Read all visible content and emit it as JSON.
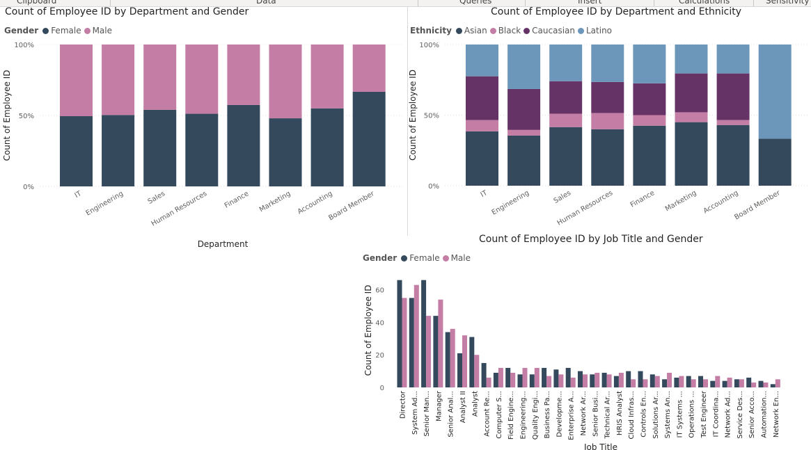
{
  "ribbon": {
    "items": [
      "Clipboard",
      "Data",
      "Queries",
      "Insert",
      "Calculations",
      "Sensitivity"
    ]
  },
  "colors": {
    "female": "#344a5c",
    "male": "#c47da5",
    "asian": "#344a5c",
    "black": "#c47da5",
    "caucasian": "#663366",
    "latino": "#6d97ba"
  },
  "chart1": {
    "title": "Count of Employee ID by Department and Gender",
    "legend_title": "Gender",
    "legend": [
      "Female",
      "Male"
    ]
  },
  "chart2": {
    "title": "Count of Employee ID by Department and Ethnicity",
    "legend_title": "Ethnicity",
    "legend": [
      "Asian",
      "Black",
      "Caucasian",
      "Latino"
    ]
  },
  "chart3": {
    "title": "Count of Employee ID by Job Title and Gender",
    "legend_title": "Gender",
    "legend": [
      "Female",
      "Male"
    ]
  },
  "chart_data": [
    {
      "type": "bar",
      "stacked": "100%",
      "title": "Count of Employee ID by Department and Gender",
      "xlabel": "Department",
      "ylabel": "Count of Employee ID",
      "yticks": [
        "0%",
        "50%",
        "100%"
      ],
      "ylim": [
        0,
        100
      ],
      "legend_position": "top-left",
      "categories": [
        "IT",
        "Engineering",
        "Sales",
        "Human Resources",
        "Finance",
        "Marketing",
        "Accounting",
        "Board Member"
      ],
      "series": [
        {
          "name": "Female",
          "values": [
            49.5,
            50.3,
            54,
            51.2,
            57.4,
            48,
            55,
            66.7
          ]
        },
        {
          "name": "Male",
          "values": [
            50.5,
            49.7,
            46,
            48.8,
            42.6,
            52,
            45,
            33.3
          ]
        }
      ]
    },
    {
      "type": "bar",
      "stacked": "100%",
      "title": "Count of Employee ID by Department and Ethnicity",
      "xlabel": "",
      "ylabel": "Count of Employee ID",
      "yticks": [
        "0%",
        "50%",
        "100%"
      ],
      "ylim": [
        0,
        100
      ],
      "legend_position": "top-left",
      "categories": [
        "IT",
        "Engineering",
        "Sales",
        "Human Resources",
        "Finance",
        "Marketing",
        "Accounting",
        "Board Member"
      ],
      "series": [
        {
          "name": "Asian",
          "values": [
            38.5,
            35.5,
            41.5,
            40,
            42.5,
            45,
            43,
            33.3
          ]
        },
        {
          "name": "Black",
          "values": [
            8,
            4,
            9.5,
            11.5,
            7.5,
            7,
            3.5,
            0
          ]
        },
        {
          "name": "Caucasian",
          "values": [
            31,
            29,
            23,
            22,
            22.5,
            27.5,
            33,
            0
          ]
        },
        {
          "name": "Latino",
          "values": [
            22.5,
            31.5,
            26,
            26.5,
            27.5,
            20.5,
            20.5,
            66.7
          ]
        }
      ]
    },
    {
      "type": "bar",
      "stacked": "none",
      "title": "Count of Employee ID by Job Title and Gender",
      "xlabel": "Job Title",
      "ylabel": "Count of Employee ID",
      "yticks": [
        "0",
        "20",
        "40",
        "60"
      ],
      "ylim": [
        0,
        68
      ],
      "legend_position": "top-left",
      "categories": [
        "Director",
        "System Ad...",
        "Senior Man...",
        "Manager",
        "Senior Anal...",
        "Analyst II",
        "Analyst",
        "Account Re...",
        "Computer S...",
        "Field Engine...",
        "Engineering...",
        "Quality Engi...",
        "Business Pa...",
        "Developme...",
        "Enterprise A...",
        "Network Ar...",
        "Senior Busi...",
        "Technical Ar...",
        "HRIS Analyst",
        "Cloud Infras...",
        "Controls En...",
        "Solutions Ar...",
        "Systems An...",
        "IT Systems ...",
        "Operations ...",
        "Test Engineer",
        "IT Coordina...",
        "Network Ad...",
        "Service Des...",
        "Senior Acco...",
        "Automation...",
        "Network En..."
      ],
      "series": [
        {
          "name": "Female",
          "values": [
            66,
            55,
            66,
            44,
            34,
            21,
            31,
            15,
            9,
            12,
            8,
            8,
            12,
            11,
            12,
            10,
            8,
            9,
            7,
            10,
            10,
            8,
            5,
            6,
            7,
            7,
            4,
            4,
            5,
            6,
            4,
            2
          ]
        },
        {
          "name": "Male",
          "values": [
            55,
            63,
            44,
            54,
            36,
            32,
            20,
            6,
            12,
            9,
            12,
            12,
            7,
            8,
            6,
            8,
            9,
            8,
            9,
            5,
            5,
            7,
            9,
            7,
            5,
            5,
            7,
            6,
            5,
            3,
            3,
            5
          ]
        }
      ]
    }
  ]
}
